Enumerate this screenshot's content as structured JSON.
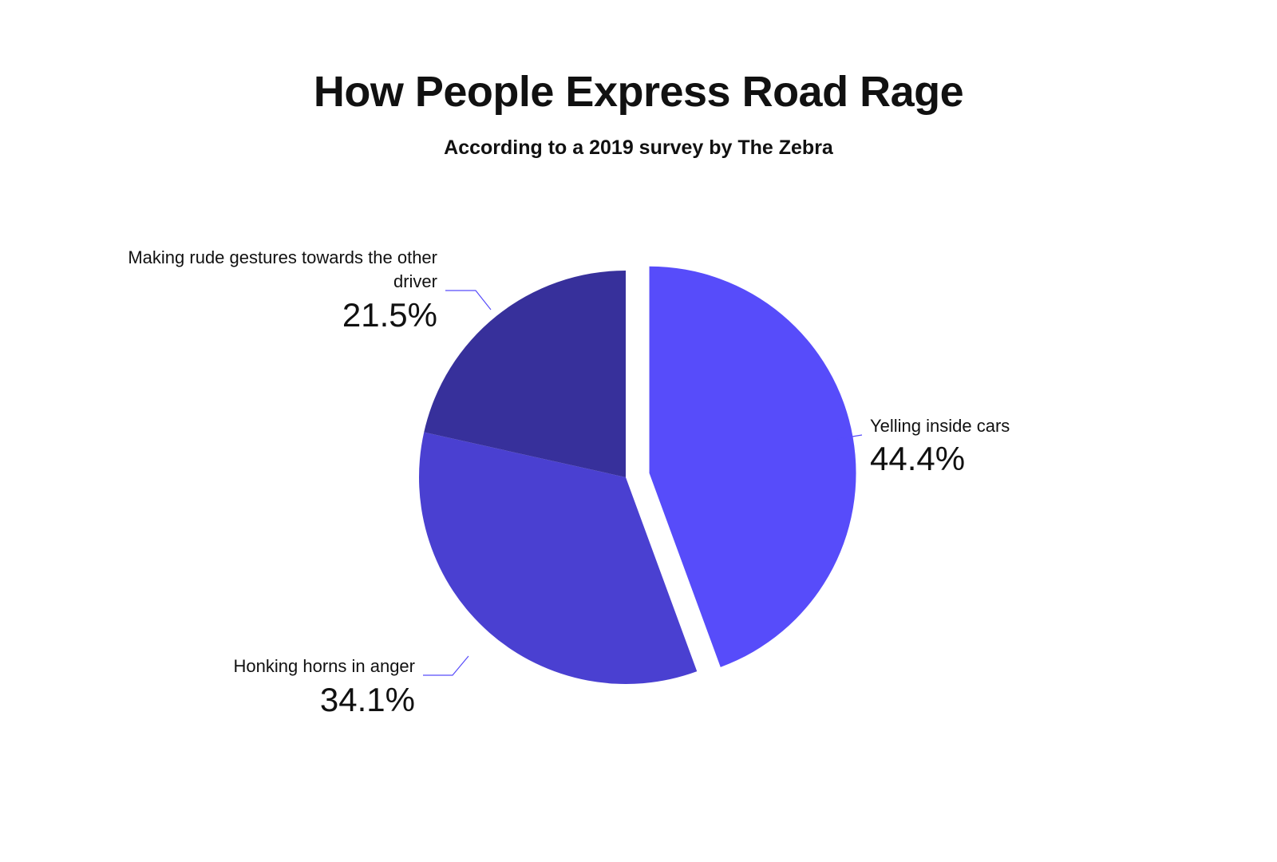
{
  "chart_data": {
    "type": "pie",
    "title": "How People Express Road Rage",
    "subtitle": "According to a 2019 survey by The Zebra",
    "slices": [
      {
        "label": "Yelling inside cars",
        "value": 44.4,
        "value_label": "44.4%",
        "color": "#574cfa",
        "exploded": true
      },
      {
        "label": "Honking horns in anger",
        "value": 34.1,
        "value_label": "34.1%",
        "color": "#4a40d1",
        "exploded": false
      },
      {
        "label": "Making rude gestures towards the other driver",
        "value": 21.5,
        "value_label": "21.5%",
        "color": "#37309b",
        "exploded": false
      }
    ],
    "label_line_color": "#574cfa"
  }
}
